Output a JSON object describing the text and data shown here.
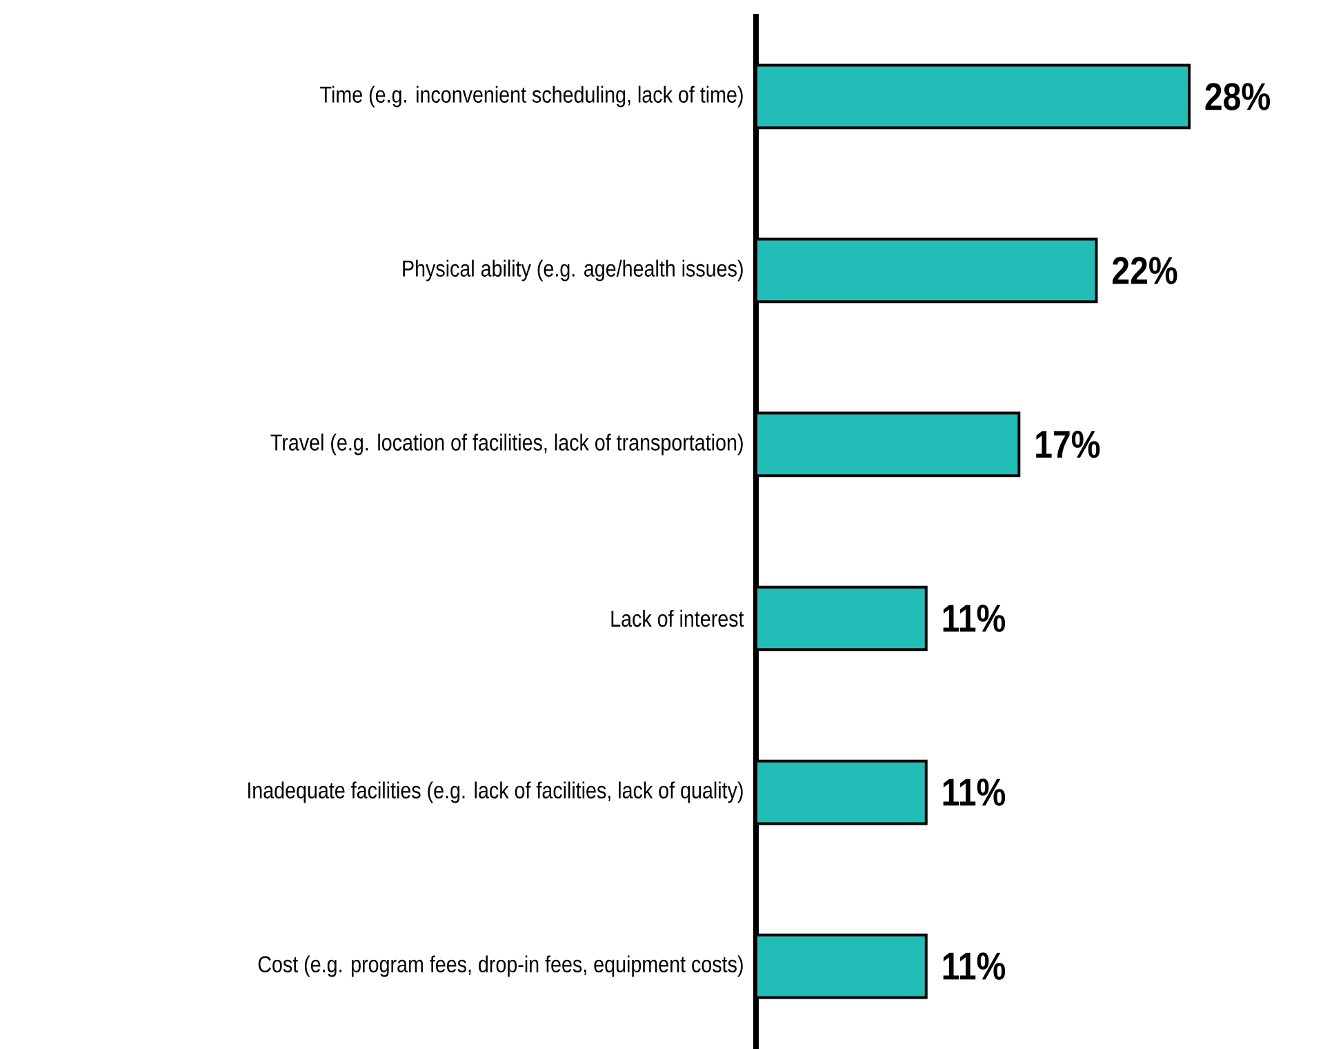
{
  "chart_data": {
    "type": "bar",
    "orientation": "horizontal",
    "categories": [
      "Time (e.g. inconvenient scheduling, lack of time)",
      "Physical ability (e.g. age/health issues)",
      "Travel (e.g. location of facilities, lack of transportation)",
      "Lack of interest",
      "Inadequate facilities (e.g. lack of facilities, lack of quality)",
      "Cost (e.g. program fees, drop-in fees, equipment costs)"
    ],
    "values": [
      28,
      22,
      17,
      11,
      11,
      11
    ],
    "value_labels": [
      "28%",
      "22%",
      "17%",
      "11%",
      "11%",
      "11%"
    ],
    "color": "#23bdb8"
  }
}
